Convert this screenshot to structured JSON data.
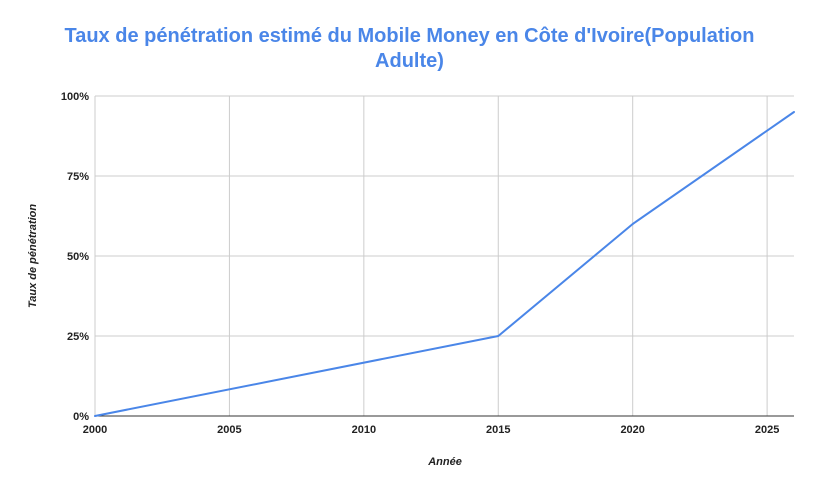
{
  "chart_data": {
    "type": "line",
    "title": "Taux de pénétration estimé du Mobile Money en Côte d'Ivoire(Population Adulte)",
    "xlabel": "Année",
    "ylabel": "Taux de pénétration",
    "x": [
      2000,
      2015,
      2020,
      2026
    ],
    "series": [
      {
        "values": [
          0,
          25,
          60,
          95
        ]
      }
    ],
    "xlim": [
      2000,
      2026
    ],
    "ylim": [
      0,
      100
    ],
    "x_ticks": [
      2000,
      2005,
      2010,
      2015,
      2020,
      2025
    ],
    "x_tick_labels": [
      "2000",
      "2005",
      "2010",
      "2015",
      "2020",
      "2025"
    ],
    "y_ticks": [
      0,
      25,
      50,
      75,
      100
    ],
    "y_tick_labels": [
      "0%",
      "25%",
      "50%",
      "75%",
      "100%"
    ],
    "grid": true,
    "legend": "none",
    "colors": {
      "title": "#4a86e8",
      "line": "#4a86e8",
      "grid": "#cccccc",
      "axis": "#333333",
      "text": "#222222"
    }
  }
}
